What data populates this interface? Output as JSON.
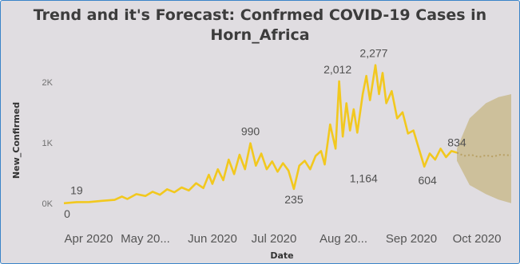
{
  "chart_data": {
    "type": "line",
    "title_line1": "Trend and it's Forecast: Confrmed COVID-19 Cases in",
    "title_line2": "Horn_Africa",
    "xlabel": "Date",
    "ylabel": "New_Confirmed",
    "x_ticks": [
      "Apr 2020",
      "May 20...",
      "Jun 2020",
      "Jul 2020",
      "Aug 20...",
      "Sep 2020",
      "Oct 2020"
    ],
    "y_ticks": [
      "0K",
      "1K",
      "2K"
    ],
    "ylim": [
      -200,
      2300
    ],
    "date_range": [
      "2020-03-13",
      "2020-11-15"
    ],
    "colors": {
      "line": "#f2c81e",
      "forecast_band": "#c9bb8e",
      "forecast_line": "#b8a064"
    },
    "series": [
      {
        "values": [
          [
            "2020-03-13",
            0
          ],
          [
            "2020-03-20",
            19
          ],
          [
            "2020-03-27",
            20
          ],
          [
            "2020-04-03",
            40
          ],
          [
            "2020-04-10",
            55
          ],
          [
            "2020-04-14",
            110
          ],
          [
            "2020-04-17",
            70
          ],
          [
            "2020-04-22",
            150
          ],
          [
            "2020-04-27",
            120
          ],
          [
            "2020-05-01",
            190
          ],
          [
            "2020-05-05",
            140
          ],
          [
            "2020-05-09",
            230
          ],
          [
            "2020-05-13",
            180
          ],
          [
            "2020-05-17",
            260
          ],
          [
            "2020-05-21",
            210
          ],
          [
            "2020-05-25",
            330
          ],
          [
            "2020-05-29",
            250
          ],
          [
            "2020-06-01",
            470
          ],
          [
            "2020-06-03",
            320
          ],
          [
            "2020-06-06",
            560
          ],
          [
            "2020-06-09",
            380
          ],
          [
            "2020-06-12",
            720
          ],
          [
            "2020-06-15",
            480
          ],
          [
            "2020-06-18",
            800
          ],
          [
            "2020-06-21",
            560
          ],
          [
            "2020-06-24",
            990
          ],
          [
            "2020-06-27",
            620
          ],
          [
            "2020-06-30",
            820
          ],
          [
            "2020-07-03",
            560
          ],
          [
            "2020-07-06",
            690
          ],
          [
            "2020-07-09",
            520
          ],
          [
            "2020-07-12",
            660
          ],
          [
            "2020-07-15",
            540
          ],
          [
            "2020-07-18",
            235
          ],
          [
            "2020-07-21",
            620
          ],
          [
            "2020-07-24",
            700
          ],
          [
            "2020-07-27",
            560
          ],
          [
            "2020-07-30",
            780
          ],
          [
            "2020-08-02",
            860
          ],
          [
            "2020-08-04",
            640
          ],
          [
            "2020-08-07",
            1300
          ],
          [
            "2020-08-10",
            900
          ],
          [
            "2020-08-12",
            2012
          ],
          [
            "2020-08-14",
            1100
          ],
          [
            "2020-08-16",
            1650
          ],
          [
            "2020-08-18",
            1200
          ],
          [
            "2020-08-20",
            1550
          ],
          [
            "2020-08-22",
            1164
          ],
          [
            "2020-08-25",
            1800
          ],
          [
            "2020-08-27",
            2100
          ],
          [
            "2020-08-29",
            1700
          ],
          [
            "2020-09-01",
            2277
          ],
          [
            "2020-09-03",
            1800
          ],
          [
            "2020-09-05",
            2150
          ],
          [
            "2020-09-07",
            1650
          ],
          [
            "2020-09-10",
            1850
          ],
          [
            "2020-09-13",
            1400
          ],
          [
            "2020-09-16",
            1500
          ],
          [
            "2020-09-19",
            1150
          ],
          [
            "2020-09-22",
            1200
          ],
          [
            "2020-09-25",
            900
          ],
          [
            "2020-09-28",
            604
          ],
          [
            "2020-10-01",
            820
          ],
          [
            "2020-10-04",
            720
          ],
          [
            "2020-10-07",
            900
          ],
          [
            "2020-10-10",
            760
          ],
          [
            "2020-10-13",
            860
          ],
          [
            "2020-10-16",
            834
          ]
        ]
      }
    ],
    "forecast": {
      "x_start": "2020-10-16",
      "x_end": "2020-11-15",
      "values": [
        [
          "2020-10-16",
          834
        ],
        [
          "2020-10-20",
          780
        ],
        [
          "2020-10-24",
          800
        ],
        [
          "2020-10-28",
          760
        ],
        [
          "2020-11-01",
          790
        ],
        [
          "2020-11-05",
          770
        ],
        [
          "2020-11-09",
          800
        ],
        [
          "2020-11-15",
          790
        ]
      ],
      "upper": [
        [
          "2020-10-16",
          900
        ],
        [
          "2020-10-23",
          1400
        ],
        [
          "2020-11-01",
          1650
        ],
        [
          "2020-11-08",
          1750
        ],
        [
          "2020-11-15",
          1800
        ]
      ],
      "lower": [
        [
          "2020-10-16",
          700
        ],
        [
          "2020-10-23",
          300
        ],
        [
          "2020-11-01",
          150
        ],
        [
          "2020-11-08",
          60
        ],
        [
          "2020-11-15",
          0
        ]
      ]
    },
    "data_labels": [
      {
        "text": "19",
        "x": "2020-03-20",
        "y": 19
      },
      {
        "text": "0",
        "x": "2020-03-13",
        "y": 0
      },
      {
        "text": "990",
        "x": "2020-06-24",
        "y": 990
      },
      {
        "text": "235",
        "x": "2020-07-18",
        "y": 235
      },
      {
        "text": "2,012",
        "x": "2020-08-12",
        "y": 2012
      },
      {
        "text": "2,277",
        "x": "2020-09-01",
        "y": 2277
      },
      {
        "text": "1,164",
        "x": "2020-08-22",
        "y": 1164
      },
      {
        "text": "604",
        "x": "2020-09-28",
        "y": 604
      },
      {
        "text": "834",
        "x": "2020-10-16",
        "y": 834
      }
    ]
  }
}
